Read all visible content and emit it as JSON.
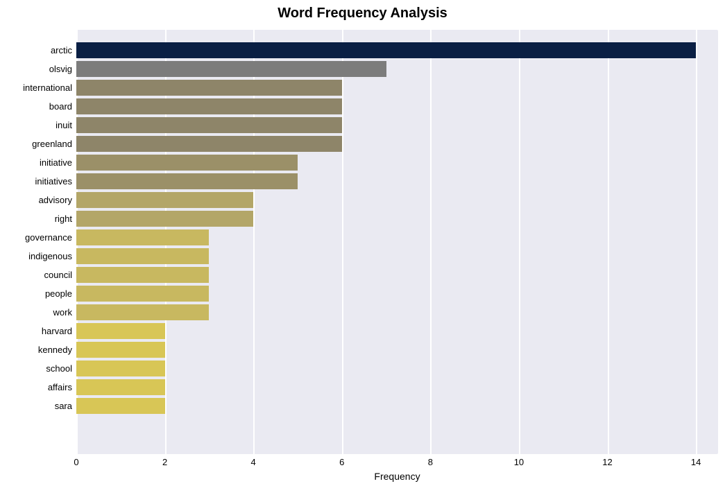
{
  "chart": {
    "type": "bar",
    "title": "Word Frequency Analysis",
    "title_fontsize": 20,
    "title_fontweight": "bold",
    "xlabel": "Frequency",
    "xlabel_fontsize": 14,
    "label_fontsize": 13,
    "background_color": "#eaeaf2",
    "grid_color": "#ffffff",
    "xlim": [
      0,
      14.5
    ],
    "xtick_step": 2,
    "xticks": [
      0,
      2,
      4,
      6,
      8,
      10,
      12,
      14
    ],
    "bar_height": 0.85,
    "categories": [
      "arctic",
      "olsvig",
      "international",
      "board",
      "inuit",
      "greenland",
      "initiative",
      "initiatives",
      "advisory",
      "right",
      "governance",
      "indigenous",
      "council",
      "people",
      "work",
      "harvard",
      "kennedy",
      "school",
      "affairs",
      "sara"
    ],
    "values": [
      14,
      7,
      6,
      6,
      6,
      6,
      5,
      5,
      4,
      4,
      3,
      3,
      3,
      3,
      3,
      2,
      2,
      2,
      2,
      2
    ],
    "bar_colors": [
      "#0a1f44",
      "#7c7c7c",
      "#8e8569",
      "#8e8569",
      "#8e8569",
      "#8e8569",
      "#9b9068",
      "#9b9068",
      "#b3a668",
      "#b3a668",
      "#c8b860",
      "#c8b860",
      "#c8b860",
      "#c8b860",
      "#c8b860",
      "#d8c656",
      "#d8c656",
      "#d8c656",
      "#d8c656",
      "#d8c656"
    ]
  }
}
